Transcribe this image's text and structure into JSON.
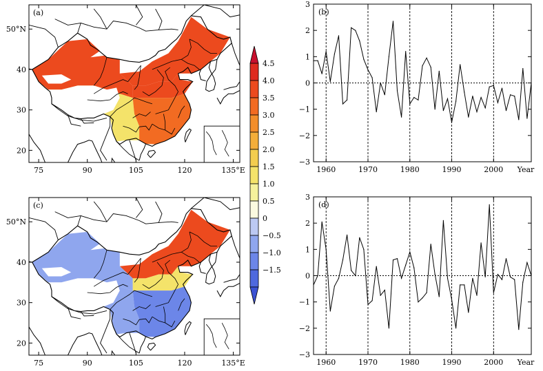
{
  "colorbar": {
    "labels": [
      "4.5",
      "4.0",
      "3.5",
      "3.0",
      "2.5",
      "2.0",
      "1.5",
      "1.0",
      "0.5",
      "0",
      "−0.5",
      "−1.0",
      "−1.5"
    ],
    "colors": [
      "#c8102e",
      "#de2a1f",
      "#ec4a1e",
      "#f26b22",
      "#f38e2b",
      "#f4ae3a",
      "#f3cd4f",
      "#f4e36a",
      "#f5f19c",
      "#fbfae0",
      "#bcc9f3",
      "#8fa6ee",
      "#6c86e8",
      "#4f69de",
      "#3b52d3"
    ]
  },
  "chart_data": [
    {
      "type": "heatmap",
      "panel": "(a)",
      "title": "(a)",
      "x_ticks": [
        "75",
        "90",
        "105",
        "120",
        "135°E"
      ],
      "y_ticks": [
        "20",
        "30",
        "40",
        "50°N"
      ],
      "xlim": [
        72,
        137
      ],
      "ylim": [
        17,
        56
      ],
      "value_range": [
        0,
        4.5
      ],
      "description_regions": [
        {
          "region": "northeast",
          "value": 3.5
        },
        {
          "region": "north",
          "value": 3.6
        },
        {
          "region": "northwest",
          "value": 3.8
        },
        {
          "region": "southwest",
          "value": 1.0
        },
        {
          "region": "southeast",
          "value": 3.4
        }
      ]
    },
    {
      "type": "line",
      "panel": "(b)",
      "title": "(b)",
      "xlabel": "Year",
      "x_ticks": [
        "1960",
        "1970",
        "1980",
        "1990",
        "2000",
        "Year"
      ],
      "y_ticks": [
        "3",
        "2",
        "1",
        "0",
        "−1",
        "−2",
        "−3"
      ],
      "xlim": [
        1957,
        2009
      ],
      "ylim": [
        -3,
        3
      ],
      "vlines": [
        1960,
        1970,
        1980,
        1990,
        2000
      ],
      "x": [
        1957,
        1958,
        1959,
        1960,
        1961,
        1962,
        1963,
        1964,
        1965,
        1966,
        1967,
        1968,
        1969,
        1970,
        1971,
        1972,
        1973,
        1974,
        1975,
        1976,
        1977,
        1978,
        1979,
        1980,
        1981,
        1982,
        1983,
        1984,
        1985,
        1986,
        1987,
        1988,
        1989,
        1990,
        1991,
        1992,
        1993,
        1994,
        1995,
        1996,
        1997,
        1998,
        1999,
        2000,
        2001,
        2002,
        2003,
        2004,
        2005,
        2006,
        2007,
        2008,
        2009
      ],
      "values": [
        0.85,
        0.85,
        0.35,
        1.2,
        0.05,
        1.1,
        1.8,
        -0.8,
        -0.65,
        2.1,
        2.0,
        1.6,
        0.9,
        0.5,
        0.2,
        -1.1,
        0.0,
        -0.45,
        1.0,
        2.35,
        -0.3,
        -1.3,
        1.2,
        -0.8,
        -0.55,
        -0.65,
        0.65,
        0.95,
        0.6,
        -1.0,
        0.45,
        -1.05,
        -0.6,
        -1.5,
        -0.7,
        0.7,
        -0.35,
        -1.3,
        -0.5,
        -1.1,
        -0.55,
        -0.95,
        -0.15,
        -0.1,
        -0.75,
        -0.2,
        -1.05,
        -0.45,
        -0.5,
        -1.4,
        0.55,
        -1.35,
        0.0
      ]
    },
    {
      "type": "heatmap",
      "panel": "(c)",
      "title": "(c)",
      "x_ticks": [
        "75",
        "90",
        "105",
        "120",
        "135°E"
      ],
      "y_ticks": [
        "20",
        "30",
        "40",
        "50°N"
      ],
      "xlim": [
        72,
        137
      ],
      "ylim": [
        17,
        56
      ],
      "value_range": [
        -1.5,
        4.5
      ],
      "description_regions": [
        {
          "region": "northeast",
          "value": 3.5
        },
        {
          "region": "north",
          "value": 1.0
        },
        {
          "region": "northwest",
          "value": -1.0
        },
        {
          "region": "southwest",
          "value": -0.8
        },
        {
          "region": "southeast",
          "value": -1.3
        }
      ]
    },
    {
      "type": "line",
      "panel": "(d)",
      "title": "(d)",
      "xlabel": "Year",
      "x_ticks": [
        "1960",
        "1970",
        "1980",
        "1990",
        "2000",
        "Year"
      ],
      "y_ticks": [
        "3",
        "2",
        "1",
        "0",
        "−1",
        "−2",
        "−3"
      ],
      "xlim": [
        1957,
        2009
      ],
      "ylim": [
        -3,
        3
      ],
      "vlines": [
        1960,
        1970,
        1980,
        1990,
        2000
      ],
      "x": [
        1957,
        1958,
        1959,
        1960,
        1961,
        1962,
        1963,
        1964,
        1965,
        1966,
        1967,
        1968,
        1969,
        1970,
        1971,
        1972,
        1973,
        1974,
        1975,
        1976,
        1977,
        1978,
        1979,
        1980,
        1981,
        1982,
        1983,
        1984,
        1985,
        1986,
        1987,
        1988,
        1989,
        1990,
        1991,
        1992,
        1993,
        1994,
        1995,
        1996,
        1997,
        1998,
        1999,
        2000,
        2001,
        2002,
        2003,
        2004,
        2005,
        2006,
        2007,
        2008,
        2009
      ],
      "values": [
        -0.35,
        0.0,
        2.05,
        1.0,
        -1.35,
        -0.4,
        -0.1,
        0.6,
        1.55,
        0.2,
        0.0,
        1.45,
        1.0,
        -1.1,
        -0.95,
        0.35,
        -0.75,
        -0.55,
        -2.0,
        0.6,
        0.65,
        -0.1,
        0.4,
        0.9,
        0.3,
        -1.0,
        -0.85,
        -0.65,
        1.2,
        0.05,
        -0.8,
        2.1,
        -0.1,
        -0.9,
        -2.0,
        -0.35,
        -0.35,
        -1.4,
        -0.1,
        -0.75,
        1.25,
        -0.05,
        2.7,
        -0.65,
        0.05,
        -0.15,
        0.65,
        -0.05,
        -0.15,
        -2.05,
        -0.25,
        0.5,
        0.0
      ]
    }
  ]
}
